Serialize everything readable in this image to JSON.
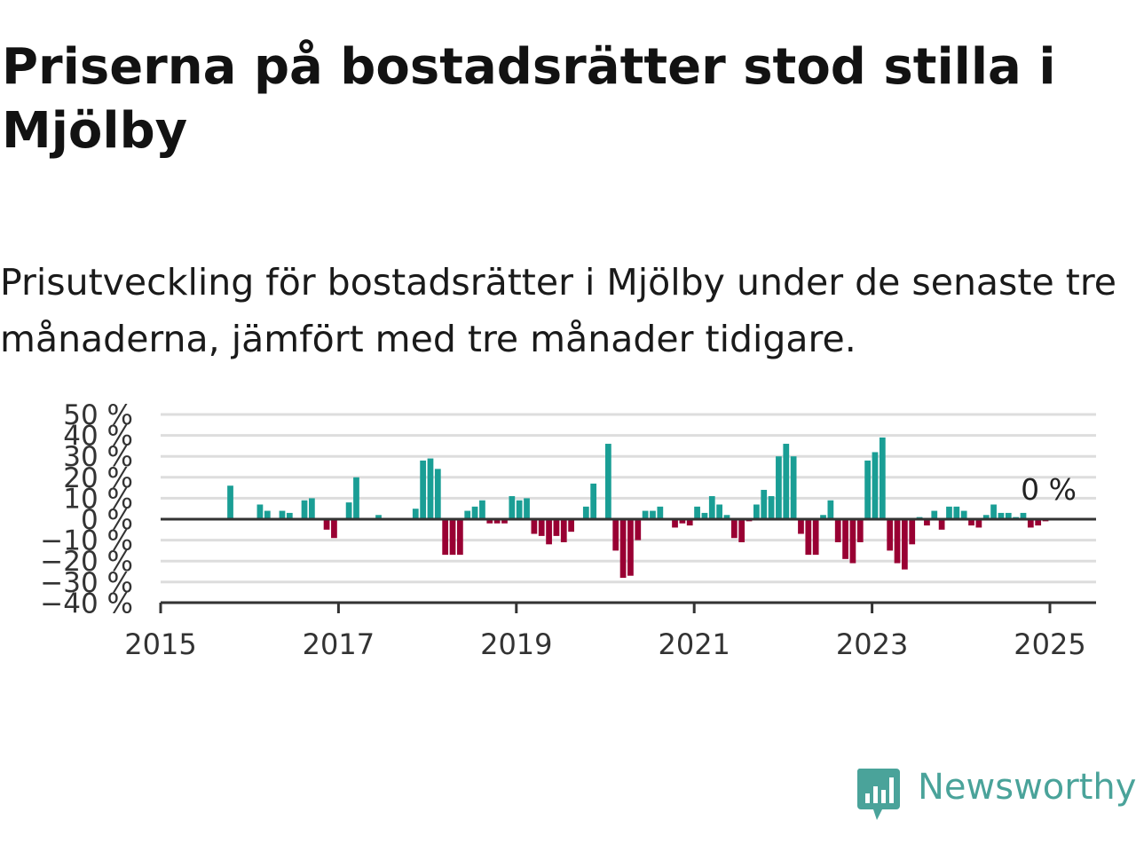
{
  "title": "Priserna på bostadsrätter stod stilla i Mjölby",
  "subtitle": "Prisutveckling för bostadsrätter i Mjölby under de senaste tre månaderna, jämfört med tre månader tidigare.",
  "brand": {
    "name": "Newsworthy",
    "icon": "newsworthy-logo-icon",
    "color": "#4aa39a"
  },
  "colors": {
    "positive": "#1a9e95",
    "negative": "#990033",
    "grid": "#dddddd",
    "zero_line": "#333333"
  },
  "chart_data": {
    "type": "bar",
    "x_unit": "month",
    "x_start": "2015-01",
    "x_ticks": [
      "2015",
      "2017",
      "2019",
      "2021",
      "2023",
      "2025"
    ],
    "y_ticks": [
      "50 %",
      "40 %",
      "30 %",
      "20 %",
      "10 %",
      "0 %",
      "−10 %",
      "−20 %",
      "−30 %",
      "−40 %"
    ],
    "ylim": [
      -40,
      50
    ],
    "grid": true,
    "annotation": "0 %",
    "values": [
      null,
      null,
      null,
      null,
      null,
      null,
      null,
      null,
      null,
      16,
      null,
      null,
      null,
      7,
      4,
      null,
      4,
      3,
      null,
      9,
      10,
      null,
      -5,
      -9,
      null,
      8,
      20,
      null,
      null,
      2,
      null,
      null,
      null,
      null,
      5,
      28,
      29,
      24,
      -17,
      -17,
      -17,
      4,
      6,
      9,
      -2,
      -2,
      -2,
      11,
      9,
      10,
      -7,
      -8,
      -12,
      -8,
      -11,
      -6,
      null,
      6,
      17,
      null,
      36,
      -15,
      -28,
      -27,
      -10,
      4,
      4,
      6,
      null,
      -4,
      -2,
      -3,
      6,
      3,
      11,
      7,
      2,
      -9,
      -11,
      -1,
      7,
      14,
      11,
      30,
      36,
      30,
      -7,
      -17,
      -17,
      2,
      9,
      -11,
      -19,
      -21,
      -11,
      28,
      32,
      39,
      -15,
      -21,
      -24,
      -12,
      1,
      -3,
      4,
      -5,
      6,
      6,
      4,
      -3,
      -4,
      2,
      7,
      3,
      3,
      1,
      3,
      -4,
      -3,
      -1,
      0
    ]
  }
}
